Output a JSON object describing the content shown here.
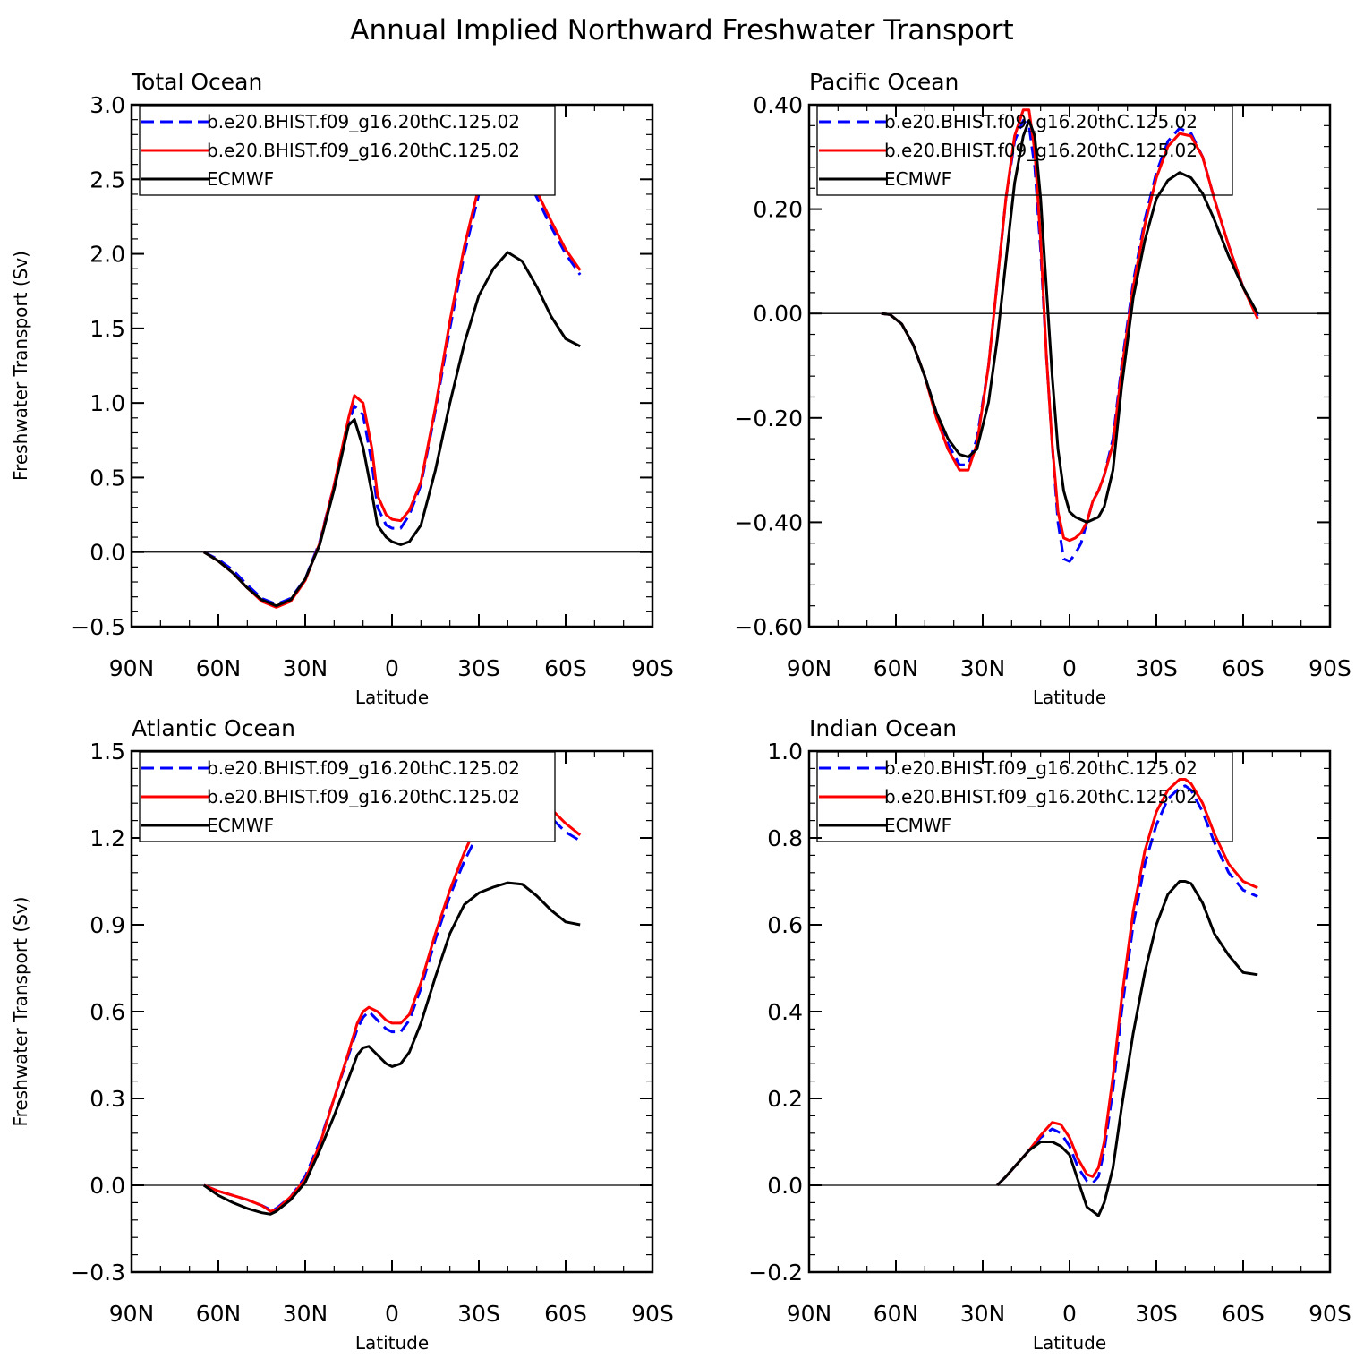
{
  "figure": {
    "title": "Annual Implied Northward Freshwater Transport"
  },
  "colors": {
    "model_a": "#0000ff",
    "model_b": "#ff0000",
    "obs": "#000000",
    "zero_line": "#000000"
  },
  "chart_data": [
    {
      "type": "line",
      "title": "Total Ocean",
      "xlabel": "Latitude",
      "ylabel": "Freshwater Transport (Sv)",
      "xlim": [
        90,
        -90
      ],
      "ylim": [
        -0.5,
        3.0
      ],
      "xticks": [
        90,
        60,
        30,
        0,
        -30,
        -60,
        -90
      ],
      "xtick_labels": [
        "90N",
        "60N",
        "30N",
        "0",
        "30S",
        "60S",
        "90S"
      ],
      "yticks": [
        -0.5,
        0,
        0.5,
        1,
        1.5,
        2,
        2.5,
        3
      ],
      "ytick_labels": [
        "−0.5",
        "0.0",
        "0.5",
        "1.0",
        "1.5",
        "2.0",
        "2.5",
        "3.0"
      ],
      "zero_line": 0,
      "legend_position": "top-left",
      "series": [
        {
          "name": "b.e20.BHIST.f09_g16.20thC.125.02",
          "style": "dashed",
          "color": "#0000ff",
          "x": [
            65,
            60,
            55,
            50,
            45,
            40,
            35,
            30,
            25,
            20,
            15,
            13,
            10,
            7,
            5,
            2,
            0,
            -3,
            -6,
            -10,
            -15,
            -20,
            -25,
            -30,
            -35,
            -40,
            -45,
            -50,
            -55,
            -60,
            -65
          ],
          "y": [
            0,
            -0.05,
            -0.12,
            -0.22,
            -0.31,
            -0.35,
            -0.31,
            -0.18,
            0.07,
            0.45,
            0.87,
            0.98,
            0.92,
            0.6,
            0.3,
            0.18,
            0.16,
            0.16,
            0.25,
            0.45,
            0.95,
            1.5,
            2.0,
            2.4,
            2.58,
            2.63,
            2.55,
            2.38,
            2.18,
            2.0,
            1.86
          ]
        },
        {
          "name": "b.e20.BHIST.f09_g16.20thC.125.02",
          "style": "solid",
          "color": "#ff0000",
          "x": [
            65,
            60,
            55,
            50,
            45,
            40,
            35,
            30,
            25,
            20,
            15,
            13,
            10,
            7,
            5,
            2,
            0,
            -3,
            -6,
            -10,
            -15,
            -20,
            -25,
            -30,
            -35,
            -40,
            -45,
            -50,
            -55,
            -60,
            -65
          ],
          "y": [
            0,
            -0.06,
            -0.14,
            -0.24,
            -0.33,
            -0.37,
            -0.33,
            -0.19,
            0.06,
            0.45,
            0.9,
            1.05,
            1.0,
            0.7,
            0.38,
            0.25,
            0.22,
            0.21,
            0.28,
            0.47,
            0.97,
            1.55,
            2.05,
            2.45,
            2.62,
            2.66,
            2.58,
            2.42,
            2.22,
            2.03,
            1.89
          ]
        },
        {
          "name": "ECMWF",
          "style": "solid",
          "color": "#000000",
          "x": [
            65,
            60,
            55,
            50,
            45,
            40,
            35,
            30,
            25,
            20,
            15,
            13,
            10,
            7,
            5,
            2,
            0,
            -3,
            -6,
            -10,
            -15,
            -20,
            -25,
            -30,
            -35,
            -40,
            -45,
            -50,
            -55,
            -60,
            -65
          ],
          "y": [
            0,
            -0.06,
            -0.14,
            -0.24,
            -0.32,
            -0.36,
            -0.32,
            -0.18,
            0.05,
            0.42,
            0.85,
            0.89,
            0.7,
            0.4,
            0.18,
            0.1,
            0.07,
            0.05,
            0.07,
            0.18,
            0.55,
            1.0,
            1.4,
            1.72,
            1.9,
            2.01,
            1.95,
            1.78,
            1.58,
            1.43,
            1.38
          ]
        }
      ]
    },
    {
      "type": "line",
      "title": "Pacific Ocean",
      "xlabel": "Latitude",
      "ylabel": "",
      "xlim": [
        90,
        -90
      ],
      "ylim": [
        -0.6,
        0.4
      ],
      "xticks": [
        90,
        60,
        30,
        0,
        -30,
        -60,
        -90
      ],
      "xtick_labels": [
        "90N",
        "60N",
        "30N",
        "0",
        "30S",
        "60S",
        "90S"
      ],
      "yticks": [
        -0.6,
        -0.4,
        -0.2,
        0,
        0.2,
        0.4
      ],
      "ytick_labels": [
        "−0.60",
        "−0.40",
        "−0.20",
        "0.00",
        "0.20",
        "0.40"
      ],
      "zero_line": 0,
      "legend_position": "top-left",
      "series": [
        {
          "name": "b.e20.BHIST.f09_g16.20thC.125.02",
          "style": "dashed",
          "color": "#0000ff",
          "x": [
            65,
            62,
            58,
            54,
            50,
            46,
            42,
            38,
            35,
            32,
            28,
            25,
            22,
            19,
            16,
            14,
            12,
            10,
            8,
            6,
            4,
            2,
            0,
            -2,
            -4,
            -6,
            -8,
            -10,
            -12,
            -15,
            -18,
            -22,
            -26,
            -30,
            -34,
            -38,
            -42,
            -46,
            -50,
            -55,
            -60,
            -65
          ],
          "y": [
            0,
            -0.002,
            -0.02,
            -0.06,
            -0.12,
            -0.19,
            -0.25,
            -0.29,
            -0.29,
            -0.24,
            -0.1,
            0.06,
            0.22,
            0.33,
            0.37,
            0.36,
            0.28,
            0.12,
            -0.08,
            -0.25,
            -0.4,
            -0.47,
            -0.475,
            -0.46,
            -0.44,
            -0.4,
            -0.36,
            -0.34,
            -0.31,
            -0.24,
            -0.1,
            0.06,
            0.18,
            0.27,
            0.33,
            0.355,
            0.345,
            0.3,
            0.22,
            0.13,
            0.05,
            -0.005
          ]
        },
        {
          "name": "b.e20.BHIST.f09_g16.20thC.125.02",
          "style": "solid",
          "color": "#ff0000",
          "x": [
            65,
            62,
            58,
            54,
            50,
            46,
            42,
            38,
            35,
            32,
            28,
            25,
            22,
            19,
            16,
            14,
            12,
            10,
            8,
            6,
            4,
            2,
            0,
            -2,
            -4,
            -6,
            -8,
            -10,
            -12,
            -15,
            -18,
            -22,
            -26,
            -30,
            -34,
            -38,
            -42,
            -46,
            -50,
            -55,
            -60,
            -65
          ],
          "y": [
            0,
            -0.002,
            -0.02,
            -0.06,
            -0.12,
            -0.2,
            -0.26,
            -0.3,
            -0.3,
            -0.25,
            -0.1,
            0.06,
            0.22,
            0.34,
            0.39,
            0.39,
            0.31,
            0.14,
            -0.08,
            -0.25,
            -0.38,
            -0.43,
            -0.435,
            -0.43,
            -0.42,
            -0.4,
            -0.36,
            -0.34,
            -0.31,
            -0.25,
            -0.11,
            0.05,
            0.17,
            0.26,
            0.32,
            0.345,
            0.34,
            0.3,
            0.22,
            0.13,
            0.05,
            -0.01
          ]
        },
        {
          "name": "ECMWF",
          "style": "solid",
          "color": "#000000",
          "x": [
            65,
            62,
            58,
            54,
            50,
            46,
            42,
            38,
            35,
            32,
            28,
            25,
            22,
            19,
            16,
            14,
            12,
            10,
            8,
            6,
            4,
            2,
            0,
            -2,
            -4,
            -6,
            -8,
            -10,
            -12,
            -15,
            -18,
            -22,
            -26,
            -30,
            -34,
            -38,
            -42,
            -46,
            -50,
            -55,
            -60,
            -65
          ],
          "y": [
            0,
            -0.002,
            -0.02,
            -0.06,
            -0.12,
            -0.19,
            -0.24,
            -0.27,
            -0.275,
            -0.26,
            -0.17,
            -0.05,
            0.1,
            0.25,
            0.34,
            0.37,
            0.34,
            0.22,
            0.05,
            -0.12,
            -0.26,
            -0.34,
            -0.38,
            -0.39,
            -0.395,
            -0.4,
            -0.395,
            -0.39,
            -0.37,
            -0.3,
            -0.14,
            0.03,
            0.14,
            0.22,
            0.255,
            0.27,
            0.26,
            0.23,
            0.18,
            0.11,
            0.05,
            0
          ]
        }
      ]
    },
    {
      "type": "line",
      "title": "Atlantic Ocean",
      "xlabel": "Latitude",
      "ylabel": "Freshwater Transport (Sv)",
      "xlim": [
        90,
        -90
      ],
      "ylim": [
        -0.3,
        1.5
      ],
      "xticks": [
        90,
        60,
        30,
        0,
        -30,
        -60,
        -90
      ],
      "xtick_labels": [
        "90N",
        "60N",
        "30N",
        "0",
        "30S",
        "60S",
        "90S"
      ],
      "yticks": [
        -0.3,
        0,
        0.3,
        0.6,
        0.9,
        1.2,
        1.5
      ],
      "ytick_labels": [
        "−0.3",
        "0.0",
        "0.3",
        "0.6",
        "0.9",
        "1.2",
        "1.5"
      ],
      "zero_line": 0,
      "legend_position": "top-left",
      "series": [
        {
          "name": "b.e20.BHIST.f09_g16.20thC.125.02",
          "style": "dashed",
          "color": "#0000ff",
          "x": [
            65,
            60,
            55,
            50,
            45,
            42,
            40,
            35,
            30,
            25,
            20,
            15,
            12,
            10,
            8,
            5,
            2,
            0,
            -3,
            -6,
            -10,
            -15,
            -20,
            -25,
            -30,
            -35,
            -40,
            -45,
            -50,
            -55,
            -60,
            -65
          ],
          "y": [
            0,
            -0.02,
            -0.035,
            -0.05,
            -0.07,
            -0.085,
            -0.08,
            -0.04,
            0.03,
            0.15,
            0.3,
            0.45,
            0.54,
            0.58,
            0.6,
            0.57,
            0.54,
            0.53,
            0.53,
            0.57,
            0.68,
            0.85,
            1.0,
            1.12,
            1.22,
            1.3,
            1.35,
            1.36,
            1.32,
            1.27,
            1.22,
            1.19
          ]
        },
        {
          "name": "b.e20.BHIST.f09_g16.20thC.125.02",
          "style": "solid",
          "color": "#ff0000",
          "x": [
            65,
            60,
            55,
            50,
            45,
            42,
            40,
            35,
            30,
            25,
            20,
            15,
            12,
            10,
            8,
            5,
            2,
            0,
            -3,
            -6,
            -10,
            -15,
            -20,
            -25,
            -30,
            -35,
            -40,
            -45,
            -50,
            -55,
            -60,
            -65
          ],
          "y": [
            0,
            -0.02,
            -0.035,
            -0.05,
            -0.07,
            -0.09,
            -0.085,
            -0.04,
            0.02,
            0.14,
            0.3,
            0.46,
            0.56,
            0.6,
            0.615,
            0.6,
            0.57,
            0.56,
            0.56,
            0.59,
            0.7,
            0.87,
            1.02,
            1.15,
            1.26,
            1.33,
            1.38,
            1.39,
            1.35,
            1.3,
            1.25,
            1.21
          ]
        },
        {
          "name": "ECMWF",
          "style": "solid",
          "color": "#000000",
          "x": [
            65,
            60,
            55,
            50,
            45,
            42,
            40,
            35,
            30,
            25,
            20,
            15,
            12,
            10,
            8,
            5,
            2,
            0,
            -3,
            -6,
            -10,
            -15,
            -20,
            -25,
            -30,
            -35,
            -40,
            -45,
            -50,
            -55,
            -60,
            -65
          ],
          "y": [
            0,
            -0.035,
            -0.06,
            -0.08,
            -0.095,
            -0.1,
            -0.09,
            -0.05,
            0.01,
            0.12,
            0.24,
            0.37,
            0.45,
            0.475,
            0.48,
            0.45,
            0.42,
            0.41,
            0.42,
            0.46,
            0.56,
            0.72,
            0.87,
            0.97,
            1.01,
            1.03,
            1.045,
            1.04,
            1.0,
            0.95,
            0.91,
            0.9
          ]
        }
      ]
    },
    {
      "type": "line",
      "title": "Indian Ocean",
      "xlabel": "Latitude",
      "ylabel": "",
      "xlim": [
        90,
        -90
      ],
      "ylim": [
        -0.2,
        1.0
      ],
      "xticks": [
        90,
        60,
        30,
        0,
        -30,
        -60,
        -90
      ],
      "xtick_labels": [
        "90N",
        "60N",
        "30N",
        "0",
        "30S",
        "60S",
        "90S"
      ],
      "yticks": [
        -0.2,
        0,
        0.2,
        0.4,
        0.6,
        0.8,
        1.0
      ],
      "ytick_labels": [
        "−0.2",
        "0.0",
        "0.2",
        "0.4",
        "0.6",
        "0.8",
        "1.0"
      ],
      "zero_line": 0,
      "legend_position": "top-left",
      "series": [
        {
          "name": "b.e20.BHIST.f09_g16.20thC.125.02",
          "style": "dashed",
          "color": "#0000ff",
          "x": [
            25,
            22,
            18,
            14,
            10,
            6,
            3,
            0,
            -3,
            -6,
            -8,
            -10,
            -12,
            -15,
            -18,
            -22,
            -26,
            -30,
            -34,
            -38,
            -40,
            -42,
            -46,
            -50,
            -55,
            -60,
            -65
          ],
          "y": [
            0,
            0.02,
            0.05,
            0.08,
            0.11,
            0.13,
            0.12,
            0.09,
            0.04,
            0.01,
            0.005,
            0.02,
            0.08,
            0.22,
            0.4,
            0.6,
            0.74,
            0.83,
            0.89,
            0.915,
            0.92,
            0.91,
            0.86,
            0.79,
            0.72,
            0.68,
            0.665
          ]
        },
        {
          "name": "b.e20.BHIST.f09_g16.20thC.125.02",
          "style": "solid",
          "color": "#ff0000",
          "x": [
            25,
            22,
            18,
            14,
            10,
            6,
            3,
            0,
            -3,
            -6,
            -8,
            -10,
            -12,
            -15,
            -18,
            -22,
            -26,
            -30,
            -34,
            -38,
            -40,
            -42,
            -46,
            -50,
            -55,
            -60,
            -65
          ],
          "y": [
            0,
            0.02,
            0.05,
            0.08,
            0.115,
            0.145,
            0.14,
            0.11,
            0.06,
            0.025,
            0.02,
            0.04,
            0.1,
            0.25,
            0.43,
            0.63,
            0.77,
            0.86,
            0.91,
            0.935,
            0.935,
            0.925,
            0.88,
            0.81,
            0.74,
            0.7,
            0.685
          ]
        },
        {
          "name": "ECMWF",
          "style": "solid",
          "color": "#000000",
          "x": [
            25,
            22,
            18,
            14,
            10,
            6,
            3,
            0,
            -3,
            -6,
            -8,
            -10,
            -12,
            -15,
            -18,
            -22,
            -26,
            -30,
            -34,
            -38,
            -40,
            -42,
            -46,
            -50,
            -55,
            -60,
            -65
          ],
          "y": [
            0,
            0.02,
            0.05,
            0.08,
            0.1,
            0.1,
            0.09,
            0.07,
            0.01,
            -0.05,
            -0.06,
            -0.07,
            -0.04,
            0.04,
            0.18,
            0.35,
            0.49,
            0.6,
            0.67,
            0.7,
            0.7,
            0.695,
            0.65,
            0.58,
            0.53,
            0.49,
            0.485
          ]
        }
      ]
    }
  ]
}
